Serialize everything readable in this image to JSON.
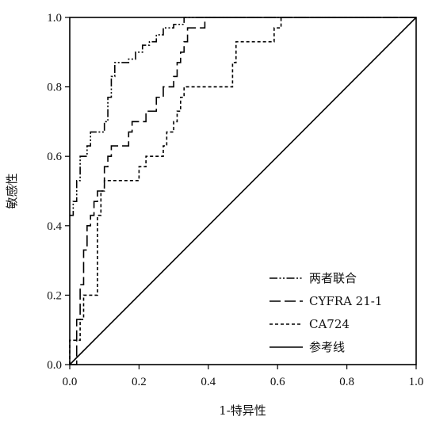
{
  "chart_data": {
    "type": "line",
    "xlabel": "1-特异性",
    "ylabel": "敏感性",
    "xlim": [
      0,
      1
    ],
    "ylim": [
      0,
      1
    ],
    "x_ticks": [
      "0.0",
      "0.2",
      "0.4",
      "0.6",
      "0.8",
      "1.0"
    ],
    "y_ticks": [
      "0.0",
      "0.2",
      "0.4",
      "0.6",
      "0.8",
      "1.0"
    ],
    "grid": false,
    "legend_position": "bottom-right",
    "series": [
      {
        "name": "两者联合",
        "style": "dash-dot-dot",
        "color": "#000000",
        "points": [
          [
            0,
            0.43
          ],
          [
            0.01,
            0.43
          ],
          [
            0.01,
            0.47
          ],
          [
            0.02,
            0.47
          ],
          [
            0.02,
            0.53
          ],
          [
            0.03,
            0.53
          ],
          [
            0.03,
            0.6
          ],
          [
            0.05,
            0.6
          ],
          [
            0.05,
            0.63
          ],
          [
            0.06,
            0.63
          ],
          [
            0.06,
            0.67
          ],
          [
            0.1,
            0.67
          ],
          [
            0.1,
            0.7
          ],
          [
            0.11,
            0.7
          ],
          [
            0.11,
            0.77
          ],
          [
            0.12,
            0.77
          ],
          [
            0.12,
            0.83
          ],
          [
            0.13,
            0.83
          ],
          [
            0.13,
            0.87
          ],
          [
            0.17,
            0.87
          ],
          [
            0.17,
            0.88
          ],
          [
            0.19,
            0.88
          ],
          [
            0.19,
            0.9
          ],
          [
            0.21,
            0.9
          ],
          [
            0.21,
            0.92
          ],
          [
            0.23,
            0.92
          ],
          [
            0.23,
            0.93
          ],
          [
            0.25,
            0.93
          ],
          [
            0.25,
            0.95
          ],
          [
            0.27,
            0.95
          ],
          [
            0.27,
            0.97
          ],
          [
            0.3,
            0.97
          ],
          [
            0.3,
            0.98
          ],
          [
            0.33,
            0.98
          ],
          [
            0.33,
            1.0
          ],
          [
            1.0,
            1.0
          ]
        ]
      },
      {
        "name": "CYFRA 21-1",
        "style": "long-dash",
        "color": "#000000",
        "points": [
          [
            0,
            0
          ],
          [
            0.02,
            0
          ],
          [
            0.02,
            0.13
          ],
          [
            0.03,
            0.13
          ],
          [
            0.03,
            0.23
          ],
          [
            0.04,
            0.23
          ],
          [
            0.04,
            0.33
          ],
          [
            0.05,
            0.33
          ],
          [
            0.05,
            0.4
          ],
          [
            0.06,
            0.4
          ],
          [
            0.06,
            0.43
          ],
          [
            0.07,
            0.43
          ],
          [
            0.07,
            0.47
          ],
          [
            0.08,
            0.47
          ],
          [
            0.08,
            0.5
          ],
          [
            0.1,
            0.5
          ],
          [
            0.1,
            0.57
          ],
          [
            0.11,
            0.57
          ],
          [
            0.11,
            0.6
          ],
          [
            0.12,
            0.6
          ],
          [
            0.12,
            0.63
          ],
          [
            0.17,
            0.63
          ],
          [
            0.17,
            0.67
          ],
          [
            0.18,
            0.67
          ],
          [
            0.18,
            0.7
          ],
          [
            0.22,
            0.7
          ],
          [
            0.22,
            0.73
          ],
          [
            0.25,
            0.73
          ],
          [
            0.25,
            0.77
          ],
          [
            0.27,
            0.77
          ],
          [
            0.27,
            0.8
          ],
          [
            0.3,
            0.8
          ],
          [
            0.3,
            0.83
          ],
          [
            0.31,
            0.83
          ],
          [
            0.31,
            0.87
          ],
          [
            0.32,
            0.87
          ],
          [
            0.32,
            0.9
          ],
          [
            0.33,
            0.9
          ],
          [
            0.33,
            0.93
          ],
          [
            0.34,
            0.93
          ],
          [
            0.34,
            0.97
          ],
          [
            0.39,
            0.97
          ],
          [
            0.39,
            1.0
          ],
          [
            1.0,
            1.0
          ]
        ]
      },
      {
        "name": "CA724",
        "style": "short-dash",
        "color": "#000000",
        "points": [
          [
            0,
            0
          ],
          [
            0,
            0.07
          ],
          [
            0.03,
            0.07
          ],
          [
            0.03,
            0.13
          ],
          [
            0.04,
            0.13
          ],
          [
            0.04,
            0.2
          ],
          [
            0.08,
            0.2
          ],
          [
            0.08,
            0.43
          ],
          [
            0.09,
            0.43
          ],
          [
            0.09,
            0.5
          ],
          [
            0.1,
            0.5
          ],
          [
            0.1,
            0.53
          ],
          [
            0.2,
            0.53
          ],
          [
            0.2,
            0.57
          ],
          [
            0.22,
            0.57
          ],
          [
            0.22,
            0.6
          ],
          [
            0.27,
            0.6
          ],
          [
            0.27,
            0.63
          ],
          [
            0.28,
            0.63
          ],
          [
            0.28,
            0.67
          ],
          [
            0.3,
            0.67
          ],
          [
            0.3,
            0.7
          ],
          [
            0.31,
            0.7
          ],
          [
            0.31,
            0.73
          ],
          [
            0.32,
            0.73
          ],
          [
            0.32,
            0.77
          ],
          [
            0.33,
            0.77
          ],
          [
            0.33,
            0.8
          ],
          [
            0.47,
            0.8
          ],
          [
            0.47,
            0.87
          ],
          [
            0.48,
            0.87
          ],
          [
            0.48,
            0.93
          ],
          [
            0.59,
            0.93
          ],
          [
            0.59,
            0.97
          ],
          [
            0.61,
            0.97
          ],
          [
            0.61,
            1.0
          ],
          [
            1.0,
            1.0
          ]
        ]
      },
      {
        "name": "参考线",
        "style": "solid",
        "color": "#000000",
        "points": [
          [
            0,
            0
          ],
          [
            1,
            1
          ]
        ]
      }
    ]
  }
}
